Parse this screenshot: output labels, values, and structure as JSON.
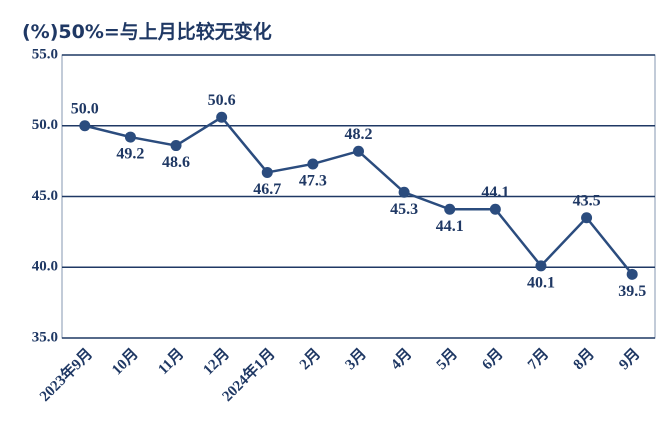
{
  "chart_data": {
    "type": "line",
    "title": "(%)50%=与上月比较无变化",
    "categories": [
      "2023年9月",
      "10月",
      "11月",
      "12月",
      "2024年1月",
      "2月",
      "3月",
      "4月",
      "5月",
      "6月",
      "7月",
      "8月",
      "9月"
    ],
    "series": [
      {
        "color": "#2b4c7e",
        "values": [
          50.0,
          49.2,
          48.6,
          50.6,
          46.7,
          47.3,
          48.2,
          45.3,
          44.1,
          44.1,
          40.1,
          43.5,
          39.5
        ],
        "value_labels": [
          "50.0",
          "49.2",
          "48.6",
          "50.6",
          "46.7",
          "47.3",
          "48.2",
          "45.3",
          "44.1",
          "44.1",
          "40.1",
          "43.5",
          "39.5"
        ]
      }
    ],
    "ylim": [
      35,
      55
    ],
    "yticks": [
      {
        "value": 35,
        "label": "35.0"
      },
      {
        "value": 40,
        "label": "40.0"
      },
      {
        "value": 45,
        "label": "45.0"
      },
      {
        "value": 50,
        "label": "50.0"
      },
      {
        "value": 55,
        "label": "55.0"
      }
    ],
    "grid": true
  }
}
